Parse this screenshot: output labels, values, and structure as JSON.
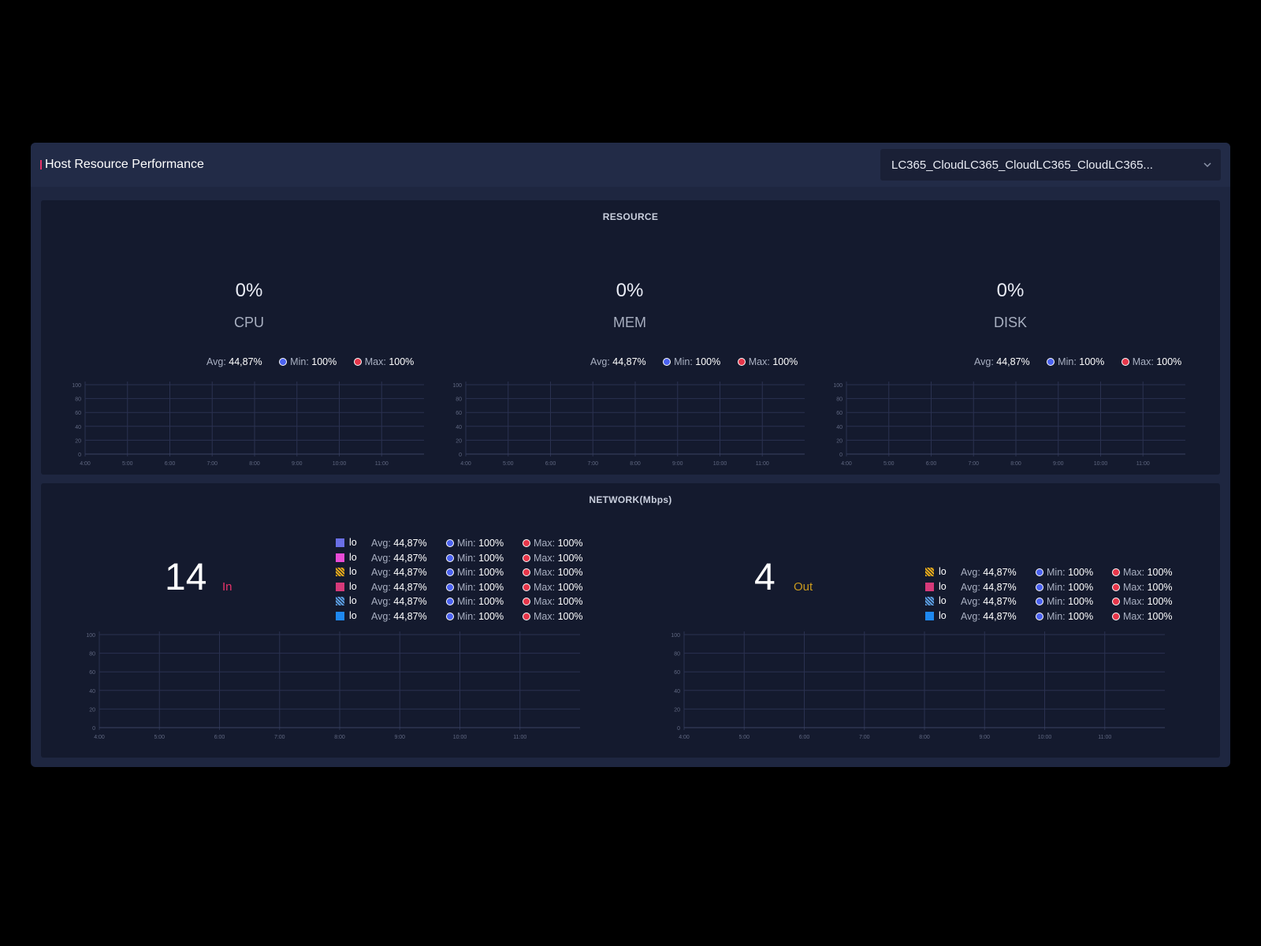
{
  "header": {
    "title": "Host Resource Performance",
    "host_select_value": "LC365_CloudLC365_CloudLC365_CloudLC365..."
  },
  "resource": {
    "title": "RESOURCE",
    "gauges": [
      {
        "value": "0%",
        "label": "CPU",
        "avg_label": "Avg:",
        "avg": "44,87%",
        "min_label": "Min:",
        "min": "100%",
        "max_label": "Max:",
        "max": "100%"
      },
      {
        "value": "0%",
        "label": "MEM",
        "avg_label": "Avg:",
        "avg": "44,87%",
        "min_label": "Min:",
        "min": "100%",
        "max_label": "Max:",
        "max": "100%"
      },
      {
        "value": "0%",
        "label": "DISK",
        "avg_label": "Avg:",
        "avg": "44,87%",
        "min_label": "Min:",
        "min": "100%",
        "max_label": "Max:",
        "max": "100%"
      }
    ]
  },
  "network": {
    "title": "NETWORK(Mbps)",
    "in": {
      "value": "14",
      "label": "In",
      "label_color": "#e8336a",
      "legend": [
        {
          "name": "lo",
          "color": "#6a6fe6",
          "pattern": "solid",
          "avg": "44,87%",
          "min": "100%",
          "max": "100%"
        },
        {
          "name": "lo",
          "color": "#e84bd6",
          "pattern": "solid",
          "avg": "44,87%",
          "min": "100%",
          "max": "100%"
        },
        {
          "name": "lo",
          "color": "#e5a91a",
          "pattern": "hatch",
          "avg": "44,87%",
          "min": "100%",
          "max": "100%"
        },
        {
          "name": "lo",
          "color": "#d63a7a",
          "pattern": "solid",
          "avg": "44,87%",
          "min": "100%",
          "max": "100%"
        },
        {
          "name": "lo",
          "color": "#5b9de0",
          "pattern": "hatch",
          "avg": "44,87%",
          "min": "100%",
          "max": "100%"
        },
        {
          "name": "lo",
          "color": "#1e88f0",
          "pattern": "solid",
          "avg": "44,87%",
          "min": "100%",
          "max": "100%"
        }
      ]
    },
    "out": {
      "value": "4",
      "label": "Out",
      "label_color": "#c99a1e",
      "legend": [
        {
          "name": "lo",
          "color": "#e5a91a",
          "pattern": "hatch",
          "avg": "44,87%",
          "min": "100%",
          "max": "100%"
        },
        {
          "name": "lo",
          "color": "#d63a7a",
          "pattern": "solid",
          "avg": "44,87%",
          "min": "100%",
          "max": "100%"
        },
        {
          "name": "lo",
          "color": "#5b9de0",
          "pattern": "hatch",
          "avg": "44,87%",
          "min": "100%",
          "max": "100%"
        },
        {
          "name": "lo",
          "color": "#1e88f0",
          "pattern": "solid",
          "avg": "44,87%",
          "min": "100%",
          "max": "100%"
        }
      ]
    },
    "legend_labels": {
      "avg": "Avg:",
      "min": "Min:",
      "max": "Max:"
    }
  },
  "chart_data": [
    {
      "type": "line",
      "title": "",
      "x": [
        "4:00",
        "5:00",
        "6:00",
        "7:00",
        "8:00",
        "9:00",
        "10:00",
        "11:00"
      ],
      "ylim": [
        0,
        100
      ],
      "y_ticks": [
        0,
        20,
        40,
        60,
        80,
        100
      ],
      "series": [],
      "grid": true
    },
    {
      "type": "line",
      "title": "",
      "x": [
        "4:00",
        "5:00",
        "6:00",
        "7:00",
        "8:00",
        "9:00",
        "10:00",
        "11:00"
      ],
      "ylim": [
        0,
        100
      ],
      "y_ticks": [
        0,
        20,
        40,
        60,
        80,
        100
      ],
      "series": [],
      "grid": true
    },
    {
      "type": "line",
      "title": "",
      "x": [
        "4:00",
        "5:00",
        "6:00",
        "7:00",
        "8:00",
        "9:00",
        "10:00",
        "11:00"
      ],
      "ylim": [
        0,
        100
      ],
      "y_ticks": [
        0,
        20,
        40,
        60,
        80,
        100
      ],
      "series": [],
      "grid": true
    },
    {
      "type": "line",
      "title": "",
      "x": [
        "4:00",
        "5:00",
        "6:00",
        "7:00",
        "8:00",
        "9:00",
        "10:00",
        "11:00"
      ],
      "ylim": [
        0,
        100
      ],
      "y_ticks": [
        0,
        20,
        40,
        60,
        80,
        100
      ],
      "series": [],
      "grid": true
    },
    {
      "type": "line",
      "title": "",
      "x": [
        "4:00",
        "5:00",
        "6:00",
        "7:00",
        "8:00",
        "9:00",
        "10:00",
        "11:00"
      ],
      "ylim": [
        0,
        100
      ],
      "y_ticks": [
        0,
        20,
        40,
        60,
        80,
        100
      ],
      "series": [],
      "grid": true
    }
  ]
}
